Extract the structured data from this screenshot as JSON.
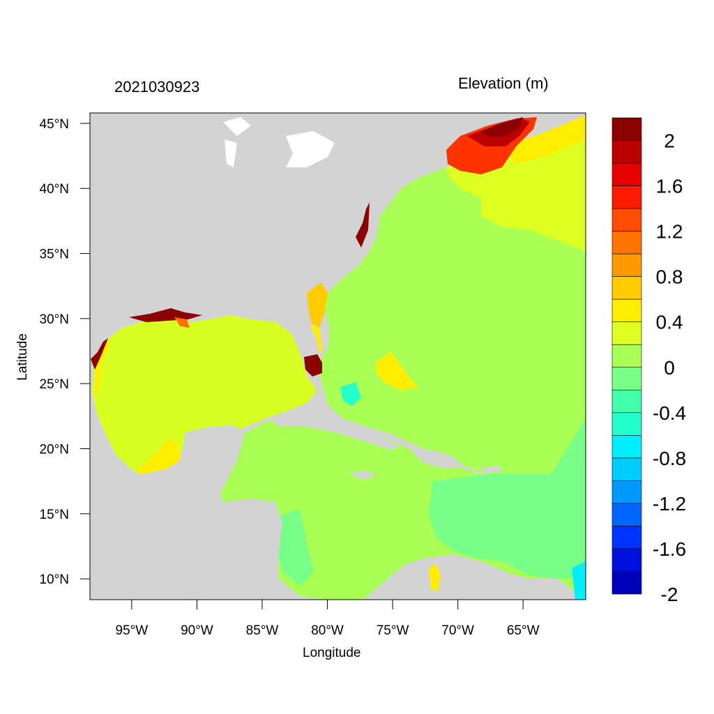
{
  "header": {
    "timestamp": "2021030923",
    "variable_title": "Elevation (m)"
  },
  "axes": {
    "xlabel": "Longitude",
    "ylabel": "Latitude",
    "lon_range": [
      -98.2,
      -60.2
    ],
    "lat_range": [
      8.4,
      45.8
    ],
    "x_ticks": [
      {
        "lon": -95,
        "label": "95°W"
      },
      {
        "lon": -90,
        "label": "90°W"
      },
      {
        "lon": -85,
        "label": "85°W"
      },
      {
        "lon": -80,
        "label": "80°W"
      },
      {
        "lon": -75,
        "label": "75°W"
      },
      {
        "lon": -70,
        "label": "70°W"
      },
      {
        "lon": -65,
        "label": "65°W"
      }
    ],
    "y_ticks": [
      {
        "lat": 45,
        "label": "45°N"
      },
      {
        "lat": 40,
        "label": "40°N"
      },
      {
        "lat": 35,
        "label": "35°N"
      },
      {
        "lat": 30,
        "label": "30°N"
      },
      {
        "lat": 25,
        "label": "25°N"
      },
      {
        "lat": 20,
        "label": "20°N"
      },
      {
        "lat": 15,
        "label": "15°N"
      },
      {
        "lat": 10,
        "label": "10°N"
      }
    ]
  },
  "colorbar": {
    "colors": [
      "#8b0000",
      "#bb0000",
      "#e60000",
      "#ff1a00",
      "#ff4d00",
      "#ff7300",
      "#ff9900",
      "#ffcc00",
      "#ffee00",
      "#ddff22",
      "#aaff55",
      "#77ff88",
      "#44ffaa",
      "#22ffcc",
      "#00eeff",
      "#00ccff",
      "#0099ff",
      "#0066ff",
      "#0033ff",
      "#0011dd",
      "#0000bb"
    ],
    "labels": [
      "2",
      "1.6",
      "1.2",
      "0.8",
      "0.4",
      "0",
      "-0.4",
      "-0.8",
      "-1.2",
      "-1.6",
      "-2"
    ]
  },
  "colors": {
    "land": "#d3d3d3",
    "gulf": "#d9ff22",
    "atlantic": "#aaff55",
    "caribbean_south": "#77ff88",
    "gulf_of_maine": "#ff3300",
    "surge_high": "#8b0000",
    "warm_yellow": "#ffee00"
  }
}
